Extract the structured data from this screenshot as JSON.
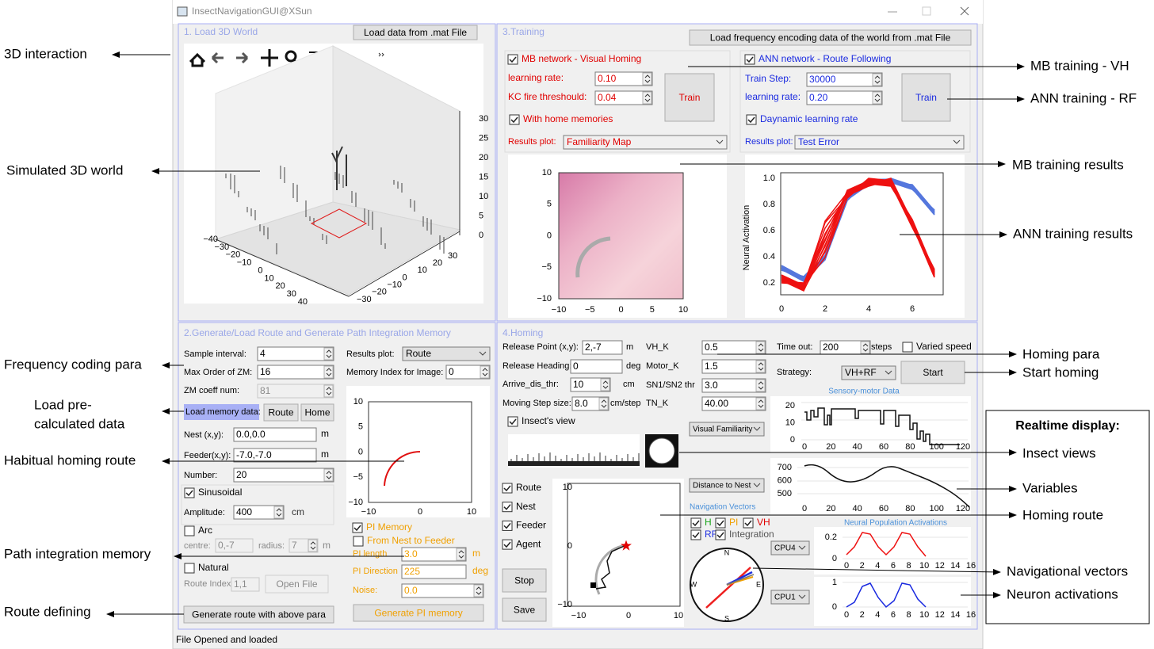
{
  "window": {
    "title": "InsectNavigationGUI@XSun",
    "status": "File Opened and loaded"
  },
  "annotations": {
    "left": [
      "3D interaction",
      "Simulated 3D world",
      "Frequency coding para",
      "Load pre-",
      "calculated data",
      "Habitual homing route",
      "Path integration memory",
      "Route defining"
    ],
    "right": [
      "MB training - VH",
      "ANN training - RF",
      "MB training results",
      "ANN training results",
      "Homing para",
      "Start homing",
      "Insect views",
      "Variables",
      "Homing route",
      "Navigational vectors",
      "Neuron activations"
    ],
    "realtime_heading": "Realtime display:"
  },
  "panel1": {
    "title": "1. Load 3D World",
    "load_button": "Load data from .mat File",
    "z_ticks": [
      "30",
      "25",
      "20",
      "15",
      "10",
      "5",
      "0"
    ],
    "x_ticks": [
      "−40",
      "−30",
      "−20",
      "−10",
      "0",
      "10",
      "20",
      "30",
      "40"
    ],
    "y_ticks": [
      "−30",
      "−20",
      "−10",
      "0",
      "10",
      "20",
      "30"
    ]
  },
  "panel3": {
    "title": "3.Training",
    "load_button": "Load frequency encoding data of the world from .mat File",
    "mb": {
      "check": {
        "label": "MB network - Visual Homing",
        "checked": true
      },
      "lr_label": "learning rate:",
      "lr": "0.10",
      "kc_label": "KC fire threshould:",
      "kc": "0.04",
      "train": "Train",
      "home_check": {
        "label": "With home memories",
        "checked": true
      },
      "results_label": "Results plot:",
      "results": "Familiarity Map",
      "x_ticks": [
        "−10",
        "−5",
        "0",
        "5",
        "10"
      ],
      "y_ticks": [
        "10",
        "5",
        "0",
        "−5",
        "−10"
      ]
    },
    "ann": {
      "check": {
        "label": "ANN network - Route Following",
        "checked": true
      },
      "step_label": "Train Step:",
      "step": "30000",
      "lr_label": "learning rate:",
      "lr": "0.20",
      "train": "Train",
      "dyn_check": {
        "label": "Daynamic learning rate",
        "checked": true
      },
      "results_label": "Results plot:",
      "results": "Test Error",
      "y_label": "Neural Activation",
      "y_ticks": [
        "1.0",
        "0.8",
        "0.6",
        "0.4",
        "0.2"
      ],
      "x_ticks": [
        "0",
        "2",
        "4",
        "6"
      ]
    }
  },
  "panel2": {
    "title": "2.Generate/Load Route and Generate Path Integration Memory",
    "sample_label": "Sample interval:",
    "sample": "4",
    "zm_label": "Max Order of ZM:",
    "zm": "16",
    "coeff_label": "ZM coeff num:",
    "coeff": "81",
    "load_label": "Load memory data:",
    "route_button": "Route",
    "home_button": "Home",
    "nest_label": "Nest (x,y):",
    "nest": "0.0,0.0",
    "feeder_label": "Feeder(x,y):",
    "feeder": "-7.0,-7.0",
    "unit_m": "m",
    "number_label": "Number:",
    "number": "20",
    "sinusoidal": {
      "label": "Sinusoidal",
      "checked": true
    },
    "amp_label": "Amplitude:",
    "amp": "400",
    "amp_unit": "cm",
    "arc": {
      "label": "Arc",
      "checked": false
    },
    "centre_label": "centre:",
    "centre": "0,-7",
    "radius_label": "radius:",
    "radius": "7",
    "natural": {
      "label": "Natural",
      "checked": false
    },
    "route_index_label": "Route Index:",
    "route_index": "1,1",
    "open_file": "Open File",
    "generate": "Generate route with above para",
    "results_label": "Results plot:",
    "results": "Route",
    "memory_label": "Memory Index for Image:",
    "memory": "0",
    "y_ticks": [
      "10",
      "5",
      "0",
      "−5",
      "−10"
    ],
    "x_ticks": [
      "−10",
      "0",
      "10"
    ],
    "pi": {
      "check": {
        "label": "PI Memory",
        "checked": true
      },
      "nest_feeder": {
        "label": "From Nest to Feeder",
        "checked": false
      },
      "length_label": "PI length",
      "length": "3.0",
      "unit_m": "m",
      "dir_label": "PI Direction",
      "dir": "225",
      "unit_deg": "deg",
      "noise_label": "Noise:",
      "noise": "0.0",
      "generate": "Generate PI memory"
    }
  },
  "panel4": {
    "title": "4.Homing",
    "release_label": "Release Point (x,y):",
    "release": "2,-7",
    "unit_m": "m",
    "heading_label": "Release Heading:",
    "heading": "0",
    "unit_deg": "deg",
    "arrive_label": "Arrive_dis_thr:",
    "arrive": "10",
    "unit_cm": "cm",
    "step_label": "Moving Step size:",
    "step": "8.0",
    "step_unit": "cm/step",
    "vhk_label": "VH_K",
    "vhk": "0.5",
    "motork_label": "Motor_K",
    "motork": "1.5",
    "sn_label": "SN1/SN2 thr",
    "sn": "3.0",
    "tnk_label": "TN_K",
    "tnk": "40.00",
    "timeout_label": "Time out:",
    "timeout": "200",
    "timeout_unit": "steps",
    "varied": {
      "label": "Varied speed",
      "checked": false
    },
    "strategy_label": "Strategy:",
    "strategy": "VH+RF",
    "start": "Start",
    "sensory_title": "Sensory-motor Data",
    "sensory_y_ticks": [
      "20",
      "10",
      "0"
    ],
    "time_x_ticks": [
      "0",
      "20",
      "40",
      "60",
      "80",
      "100",
      "120"
    ],
    "view_check": {
      "label": "Insect's view",
      "checked": true
    },
    "view_combo": "Visual Familiarity",
    "show": [
      {
        "label": "Route",
        "checked": true
      },
      {
        "label": "Nest",
        "checked": true
      },
      {
        "label": "Feeder",
        "checked": true
      },
      {
        "label": "Agent",
        "checked": true
      }
    ],
    "stop": "Stop",
    "save": "Save",
    "route_y_ticks": [
      "10",
      "0",
      "−10"
    ],
    "route_x_ticks": [
      "−10",
      "0",
      "10"
    ],
    "var_combo": "Distance to Nest",
    "var_y_ticks": [
      "700",
      "600",
      "500"
    ],
    "nav_title": "Navigation Vectors",
    "nav": [
      {
        "label": "H",
        "checked": true,
        "color": "#1aa51a"
      },
      {
        "label": "PI",
        "checked": true,
        "color": "#f0a000"
      },
      {
        "label": "VH",
        "checked": true,
        "color": "#e00000"
      },
      {
        "label": "RF",
        "checked": true,
        "color": "#2030e0"
      },
      {
        "label": "Integration",
        "checked": true,
        "color": "#555555"
      }
    ],
    "compass": [
      "N",
      "E",
      "S",
      "W"
    ],
    "neural_title": "Neural Population Activations",
    "cpu4": "CPU4",
    "cpu1": "CPU1",
    "cpu4_y_ticks": [
      "0.2",
      "0"
    ],
    "cpu1_y_ticks": [
      "1",
      "0"
    ],
    "neuron_x_ticks": [
      "0",
      "2",
      "4",
      "6",
      "8",
      "10",
      "12",
      "14",
      "16"
    ]
  }
}
